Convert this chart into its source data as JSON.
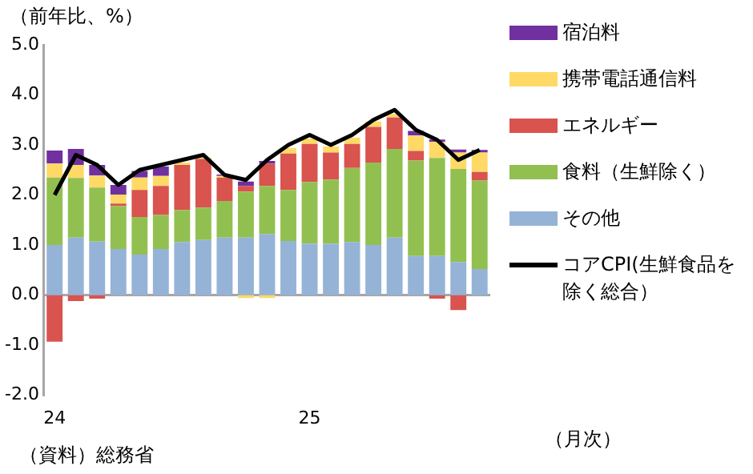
{
  "chart_data": {
    "type": "bar",
    "stacked": true,
    "ylabel": "（前年比、%）",
    "xlabel": "（月次）",
    "annotations": [
      "（資料）総務省"
    ],
    "categories": [
      "24",
      null,
      null,
      null,
      null,
      null,
      null,
      null,
      null,
      null,
      null,
      null,
      "25",
      null,
      null,
      null,
      null,
      null,
      null,
      null,
      null
    ],
    "series": [
      {
        "name": "その他",
        "color": "#95b3d7",
        "values": [
          1.0,
          1.15,
          1.07,
          0.92,
          0.81,
          0.92,
          1.06,
          1.1,
          1.15,
          1.15,
          1.22,
          1.08,
          1.03,
          1.03,
          1.06,
          1.0,
          1.15,
          0.78,
          0.78,
          0.66,
          0.52
        ]
      },
      {
        "name": "食料（生鮮除く）",
        "color": "#92c050",
        "values": [
          1.35,
          1.19,
          1.08,
          0.86,
          0.75,
          0.68,
          0.64,
          0.65,
          0.73,
          0.92,
          0.96,
          1.02,
          1.23,
          1.28,
          1.48,
          1.65,
          1.77,
          1.91,
          1.96,
          1.86,
          1.77
        ]
      },
      {
        "name": "エネルギー",
        "color": "#d9534f",
        "values": [
          -0.93,
          -0.12,
          -0.07,
          0.05,
          0.54,
          0.58,
          0.9,
          0.97,
          0.47,
          0.11,
          0.45,
          0.73,
          0.76,
          0.54,
          0.48,
          0.71,
          0.63,
          0.19,
          -0.07,
          -0.3,
          0.17
        ]
      },
      {
        "name": "携帯電話通信料",
        "color": "#ffd966",
        "values": [
          0.28,
          0.26,
          0.24,
          0.18,
          0.25,
          0.2,
          0.05,
          0.03,
          0.03,
          -0.06,
          -0.06,
          0.11,
          0.11,
          0.12,
          0.13,
          0.11,
          0.07,
          0.31,
          0.32,
          0.33,
          0.39
        ]
      },
      {
        "name": "宿泊料",
        "color": "#7030a0",
        "values": [
          0.26,
          0.32,
          0.21,
          0.19,
          0.13,
          0.19,
          null,
          null,
          0.03,
          0.09,
          0.05,
          null,
          null,
          null,
          null,
          null,
          null,
          0.09,
          0.05,
          0.06,
          0.05
        ]
      },
      {
        "name": "コアCPI(生鮮食品を除く総合）",
        "type": "line",
        "color": "#000000",
        "values": [
          2.0,
          2.8,
          2.6,
          2.2,
          2.5,
          2.6,
          2.7,
          2.8,
          2.4,
          2.3,
          2.7,
          3.0,
          3.2,
          3.0,
          3.2,
          3.5,
          3.7,
          3.3,
          3.1,
          2.7,
          2.9
        ]
      }
    ],
    "ylim": [
      -2,
      5
    ],
    "yticks": [
      {
        "value": 5,
        "label": "5.0"
      },
      {
        "value": 4,
        "label": "4.0"
      },
      {
        "value": 3,
        "label": "3.0"
      },
      {
        "value": 2,
        "label": "2.0"
      },
      {
        "value": 1,
        "label": "1.0"
      },
      {
        "value": 0,
        "label": "0.0"
      },
      {
        "value": -1,
        "label": "-1.0"
      },
      {
        "value": -2,
        "label": "-2.0"
      }
    ],
    "ref_lines": [
      {
        "axis": "y",
        "value": 0,
        "color": "#a6a6a6"
      }
    ],
    "grid": false,
    "legend": "right",
    "marker": "none"
  }
}
